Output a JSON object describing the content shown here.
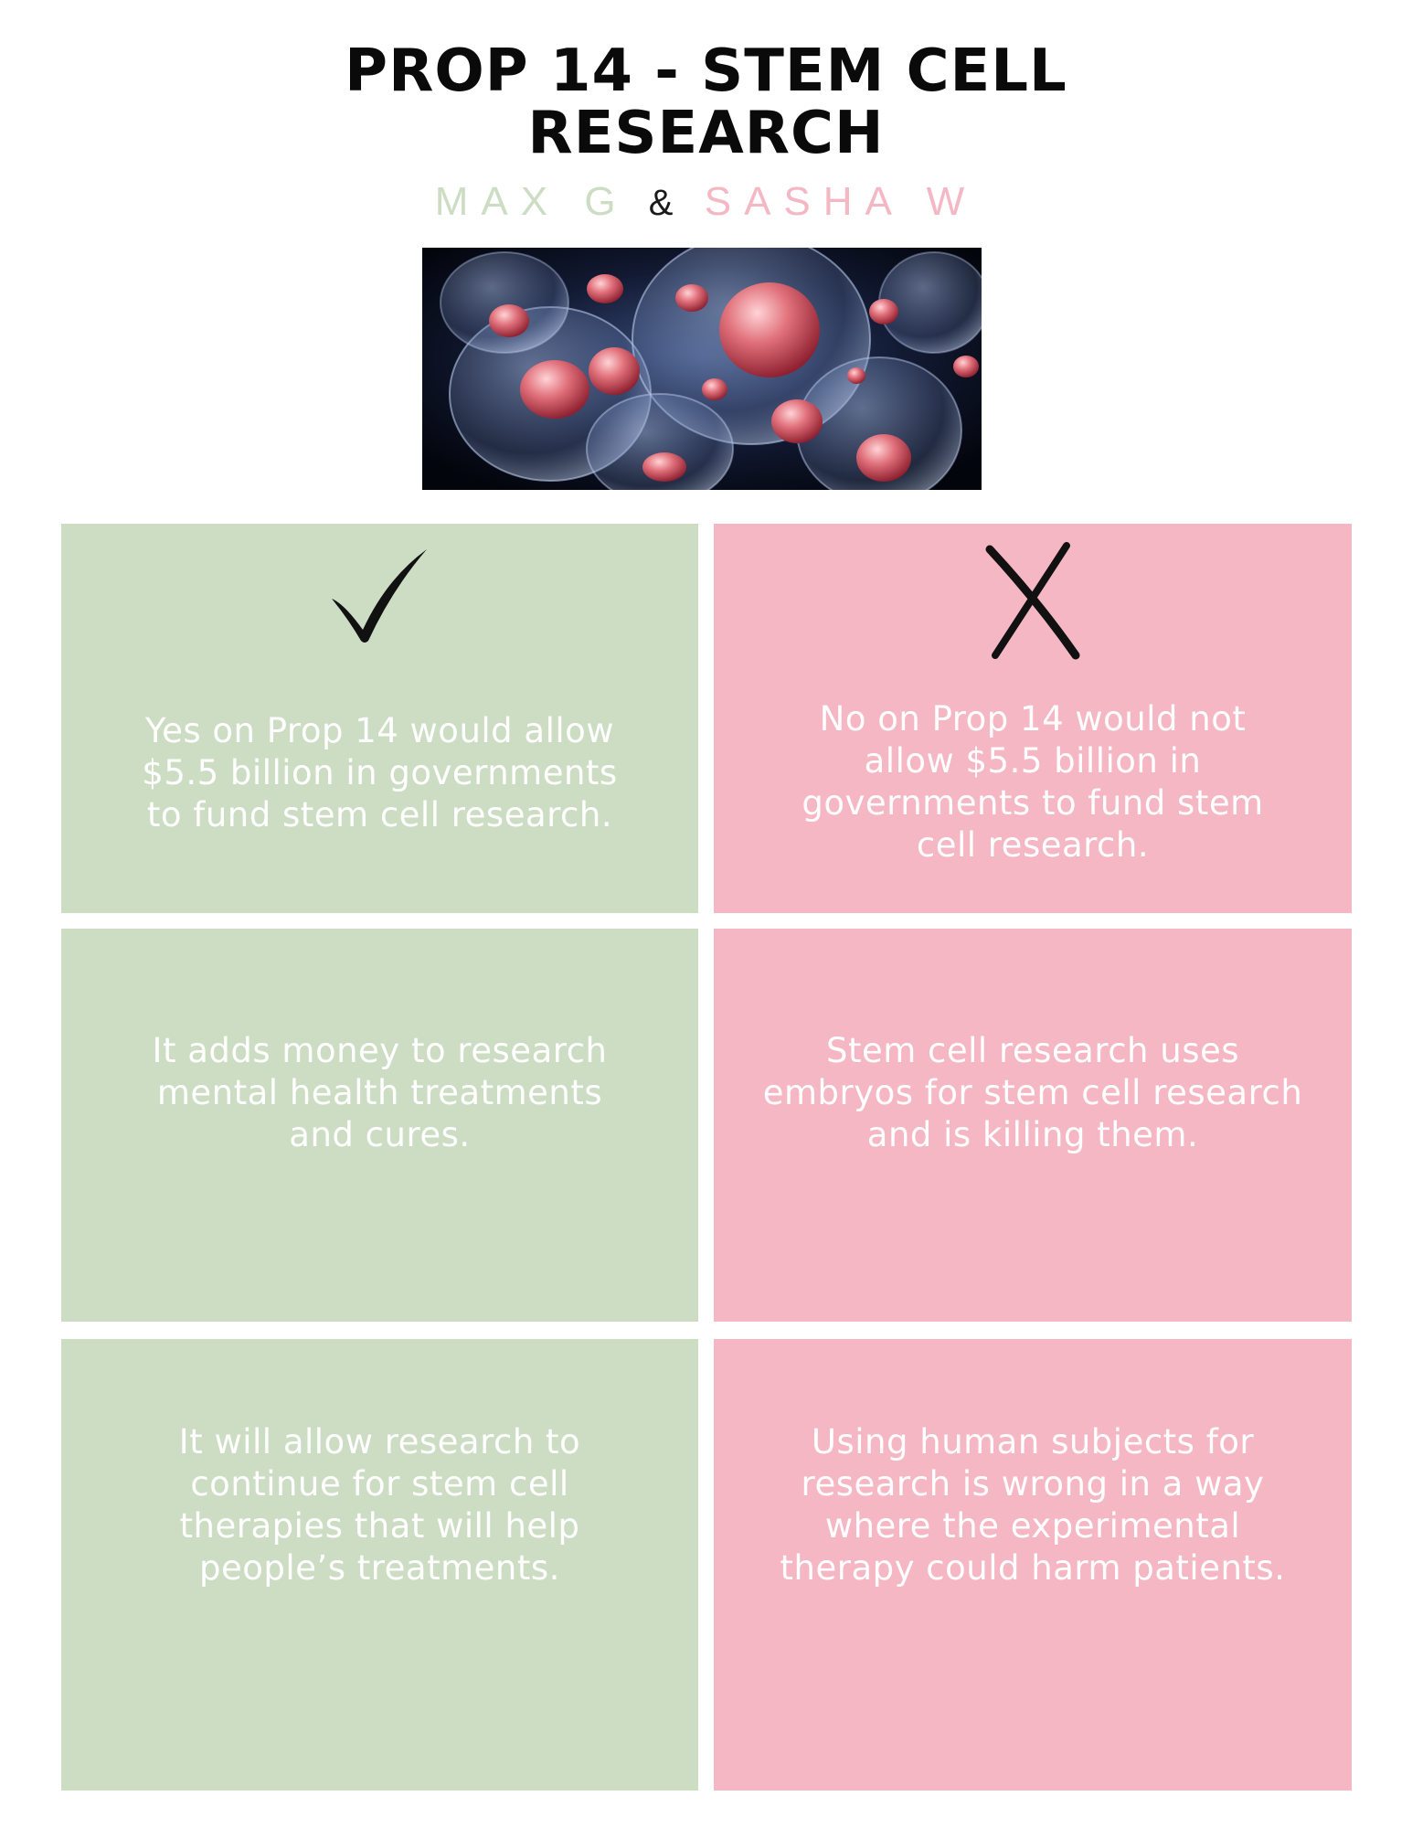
{
  "header": {
    "title_line_1": "PROP 14 - STEM CELL",
    "title_line_2": "RESEARCH",
    "author_1": "MAX G",
    "ampersand": "&",
    "author_2": "SASHA W"
  },
  "colors": {
    "yes_green": "#cdddc4",
    "no_pink": "#f6b7c4",
    "title_black": "#0a0a0a",
    "text_white": "#ffffff"
  },
  "columns": {
    "yes": {
      "icon": "checkmark-icon",
      "points": [
        "Yes on Prop 14 would allow\n$5.5 billion in governments\nto fund stem cell research.",
        "It adds money to research\nmental health treatments\nand cures.",
        "It will allow research to\ncontinue for stem cell\ntherapies that will help\npeople’s treatments."
      ]
    },
    "no": {
      "icon": "x-mark-icon",
      "points": [
        "No on Prop 14 would not\nallow $5.5 billion in\ngovernments to fund stem\ncell research.",
        "Stem cell research uses\nembryos for stem cell research\nand is killing them.",
        "Using human subjects for\nresearch is wrong in a way\nwhere the experimental\ntherapy could harm patients."
      ]
    }
  }
}
